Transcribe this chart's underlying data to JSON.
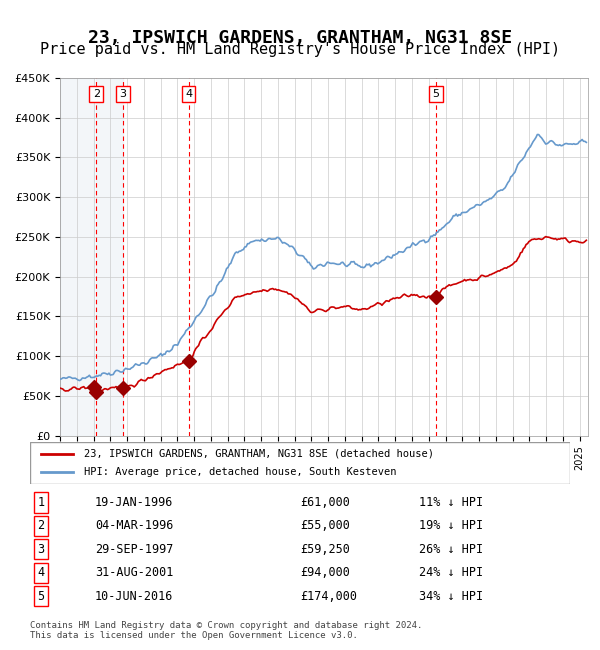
{
  "title": "23, IPSWICH GARDENS, GRANTHAM, NG31 8SE",
  "subtitle": "Price paid vs. HM Land Registry's House Price Index (HPI)",
  "title_fontsize": 13,
  "subtitle_fontsize": 11,
  "ylim": [
    0,
    450000
  ],
  "yticks": [
    0,
    50000,
    100000,
    150000,
    200000,
    250000,
    300000,
    350000,
    400000,
    450000
  ],
  "ytick_labels": [
    "£0",
    "£50K",
    "£100K",
    "£150K",
    "£200K",
    "£250K",
    "£300K",
    "£350K",
    "£400K",
    "£450K"
  ],
  "hpi_color": "#6699cc",
  "price_color": "#cc0000",
  "marker_color": "#990000",
  "background_hatch_color": "#e8eef5",
  "grid_color": "#cccccc",
  "legend_label_red": "23, IPSWICH GARDENS, GRANTHAM, NG31 8SE (detached house)",
  "legend_label_blue": "HPI: Average price, detached house, South Kesteven",
  "sales": [
    {
      "num": 1,
      "date_label": "19-JAN-1996",
      "date_x": 1996.05,
      "price": 61000,
      "pct": "11%",
      "show_vline": false
    },
    {
      "num": 2,
      "date_label": "04-MAR-1996",
      "date_x": 1996.17,
      "price": 55000,
      "pct": "19%",
      "show_vline": true
    },
    {
      "num": 3,
      "date_label": "29-SEP-1997",
      "date_x": 1997.75,
      "price": 59250,
      "pct": "26%",
      "show_vline": true
    },
    {
      "num": 4,
      "date_label": "31-AUG-2001",
      "date_x": 2001.67,
      "price": 94000,
      "pct": "24%",
      "show_vline": true
    },
    {
      "num": 5,
      "date_label": "10-JUN-2016",
      "date_x": 2016.44,
      "price": 174000,
      "pct": "34%",
      "show_vline": true
    }
  ],
  "footer": "Contains HM Land Registry data © Crown copyright and database right 2024.\nThis data is licensed under the Open Government Licence v3.0.",
  "xmin": 1994.0,
  "xmax": 2025.5
}
